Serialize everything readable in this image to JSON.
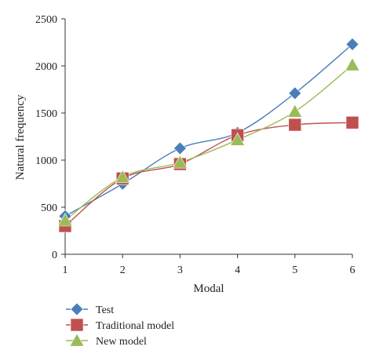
{
  "chart_data": {
    "type": "line",
    "xlabel": "Modal",
    "ylabel": "Natural frequency",
    "x": [
      1,
      2,
      3,
      4,
      5,
      6
    ],
    "xlim": [
      1,
      6
    ],
    "ylim": [
      0,
      2500
    ],
    "xticks": [
      "1",
      "2",
      "3",
      "4",
      "5",
      "6"
    ],
    "yticks": [
      "0",
      "500",
      "1000",
      "1500",
      "2000",
      "2500"
    ],
    "grid": false,
    "legend_position": "bottom-left",
    "series": [
      {
        "name": "Test",
        "values": [
          405,
          748,
          1125,
          1290,
          1710,
          2230
        ],
        "color": "#4a7ebb",
        "marker": "diamond"
      },
      {
        "name": "Traditional model",
        "values": [
          300,
          805,
          958,
          1265,
          1375,
          1398
        ],
        "color": "#c0504d",
        "marker": "square"
      },
      {
        "name": "New model",
        "values": [
          360,
          820,
          975,
          1215,
          1515,
          2010
        ],
        "color": "#9bbb59",
        "marker": "triangle"
      }
    ]
  }
}
